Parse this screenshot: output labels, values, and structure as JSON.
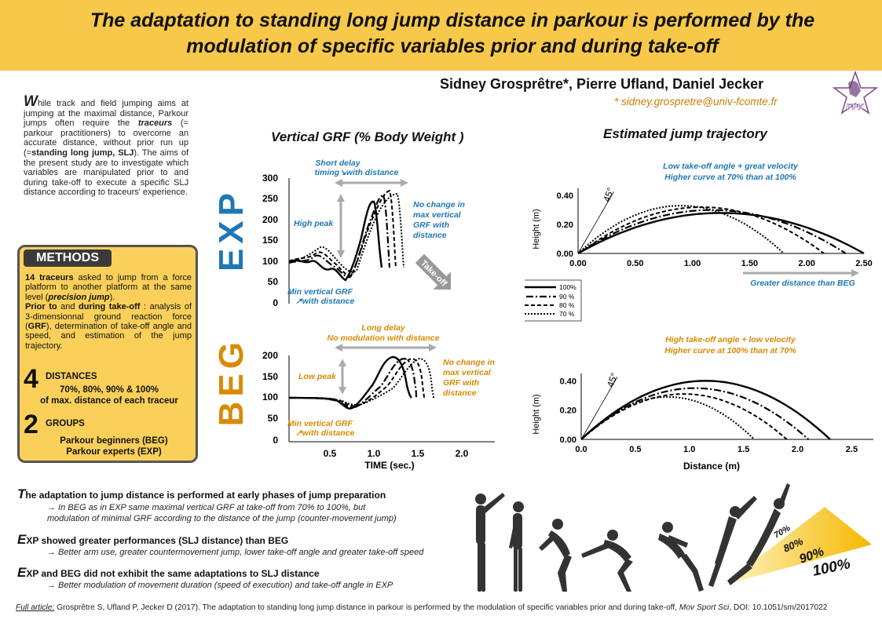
{
  "header": {
    "title": "The adaptation to standing long jump distance in parkour is performed by the modulation of specific variables prior and during take-off",
    "authors": "Sidney Grosprêtre*, Pierre Ufland, Daniel Jecker",
    "email": "* sidney.grospretre@univ-fcomte.fr",
    "logo_text": "FPK"
  },
  "intro": {
    "dropcap": "W",
    "p1": "hile track and field jumping aims at jumping at the maximal distance, Parkour jumps often require the ",
    "traceurs": "traceurs",
    "p2": " (= parkour practitioners) to overcome an accurate distance, without prior run up (=",
    "slj": "standing long jump, SLJ",
    "p3": "). The aims of the present study are to investigate which variables are manipulated prior to and during take-off to execute a specific SLJ distance according to traceurs' experience."
  },
  "methods": {
    "heading": "METHODS",
    "b1": "14 traceurs",
    "t1": " asked to jump from a force platform to another platform at the same level (",
    "b2": "precision jump",
    "t2": ").",
    "b3": "Prior to",
    "t3": " and ",
    "b4": "during take-off",
    "t4": " : analysis of 3-dimensionnal ground reaction force (",
    "b5": "GRF",
    "t5": "), determination of take-off angle and speed, and estimation of the jump trajectory.",
    "distances_num": "4",
    "distances_label": "DISTANCES",
    "distances_detail1": "70%, 80%, 90% & 100%",
    "distances_detail2": "of max. distance of each traceur",
    "groups_num": "2",
    "groups_label": "GROUPS",
    "groups_detail1": "Parkour beginners (BEG)",
    "groups_detail2": "Parkour experts (EXP)"
  },
  "grf": {
    "heading": "Vertical GRF (% Body Weight )",
    "xlabel": "TIME (sec.)",
    "exp_label": "EXP",
    "beg_label": "BEG",
    "exp_ticks": [
      "300",
      "250",
      "200",
      "150",
      "100",
      "50",
      "0"
    ],
    "beg_ticks": [
      "200",
      "150",
      "100",
      "50",
      "0"
    ],
    "x_ticks": [
      "0.5",
      "1.0",
      "1.5",
      "2.0"
    ],
    "exp_short_delay": "Short delay",
    "exp_timing": "timing↘with distance",
    "exp_high_peak": "High peak",
    "exp_no_change": [
      "No change in",
      "max vertical",
      "GRF with",
      "distance"
    ],
    "exp_min": "Min vertical GRF",
    "exp_min2": "↗with distance",
    "takeoff": "Take-off",
    "beg_long_delay": "Long delay",
    "beg_no_mod": "No modulation with distance",
    "beg_low_peak": "Low peak",
    "beg_no_change": [
      "No change in",
      "max vertical",
      "GRF with",
      "distance"
    ],
    "beg_min": "Min vertical GRF",
    "beg_min2": "↗with distance"
  },
  "traj": {
    "heading": "Estimated jump trajectory",
    "ylabel": "Height (m)",
    "xlabel": "Distance (m)",
    "angle": "45°",
    "exp_note1": "Low take-off angle + great velocity",
    "exp_note2": "Higher curve at 70% than at 100%",
    "exp_note3": "Greater distance than BEG",
    "beg_note1": "High take-off angle + low velocity",
    "beg_note2": "Higher curve at 100% than at 70%",
    "exp_yticks": [
      "0.40",
      "0.20",
      "0.00"
    ],
    "exp_xticks": [
      "0.00",
      "0.50",
      "1.00",
      "1.50",
      "2.00",
      "2.50"
    ],
    "beg_yticks": [
      "0.40",
      "0.20",
      "0.00"
    ],
    "beg_xticks": [
      "0.0",
      "0.5",
      "1.0",
      "1.5",
      "2.0",
      "2.5"
    ],
    "legend": [
      "100%",
      "90 %",
      "80 %",
      "70 %"
    ]
  },
  "conclusions": [
    {
      "cap": "T",
      "head": "he adaptation to jump distance is performed at early phases of jump preparation",
      "body": [
        "→ In BEG as in EXP same maximal vertical GRF at take-off from 70% to 100%, but",
        "modulation of minimal GRF according to the distance of the jump (counter-movement jump)"
      ]
    },
    {
      "cap": "E",
      "head": "XP showed greater performances (SLJ distance) than BEG",
      "body": [
        "→ Better arm use, greater countermovement jump, lower take-off angle and greater take-off speed"
      ]
    },
    {
      "cap": "E",
      "head": "XP and BEG did not exhibit the same adaptations to SLJ distance",
      "body": [
        "→ Better modulation of movement duration (speed of execution) and take-off angle in EXP"
      ]
    }
  ],
  "arrow_labels": [
    "70%",
    "80%",
    "90%",
    "100%"
  ],
  "footer": {
    "label": "Full article:",
    "text": " Grosprêtre S, Ufland P, Jecker D (2017). The adaptation to standing long jump distance in parkour is performed by the modulation of specific variables prior and during take-off, ",
    "journal": "Mov Sport Sci",
    "doi": ", DOI: 10.1051/sm/2017022"
  },
  "chart_data": [
    {
      "type": "line",
      "title": "Estimated jump trajectory (EXP)",
      "xlabel": "",
      "ylabel": "Height (m)",
      "xlim": [
        0,
        2.5
      ],
      "ylim": [
        0,
        0.45
      ],
      "series": [
        {
          "name": "100%",
          "x": [
            0,
            1.25,
            2.5
          ],
          "y": [
            0,
            0.28,
            0
          ]
        },
        {
          "name": "90 %",
          "x": [
            0,
            1.17,
            2.34
          ],
          "y": [
            0,
            0.3,
            0
          ]
        },
        {
          "name": "80 %",
          "x": [
            0,
            1.08,
            2.15
          ],
          "y": [
            0,
            0.32,
            0
          ]
        },
        {
          "name": "70 %",
          "x": [
            0,
            0.9,
            1.8
          ],
          "y": [
            0,
            0.33,
            0
          ]
        }
      ]
    },
    {
      "type": "line",
      "title": "Estimated jump trajectory (BEG)",
      "xlabel": "Distance (m)",
      "ylabel": "Height (m)",
      "xlim": [
        0,
        2.7
      ],
      "ylim": [
        0,
        0.45
      ],
      "series": [
        {
          "name": "100%",
          "x": [
            0,
            1.15,
            2.3
          ],
          "y": [
            0,
            0.4,
            0
          ]
        },
        {
          "name": "90 %",
          "x": [
            0,
            1.05,
            2.1
          ],
          "y": [
            0,
            0.35,
            0
          ]
        },
        {
          "name": "80 %",
          "x": [
            0,
            0.95,
            1.9
          ],
          "y": [
            0,
            0.31,
            0
          ]
        },
        {
          "name": "70 %",
          "x": [
            0,
            0.8,
            1.6
          ],
          "y": [
            0,
            0.29,
            0
          ]
        }
      ]
    }
  ]
}
